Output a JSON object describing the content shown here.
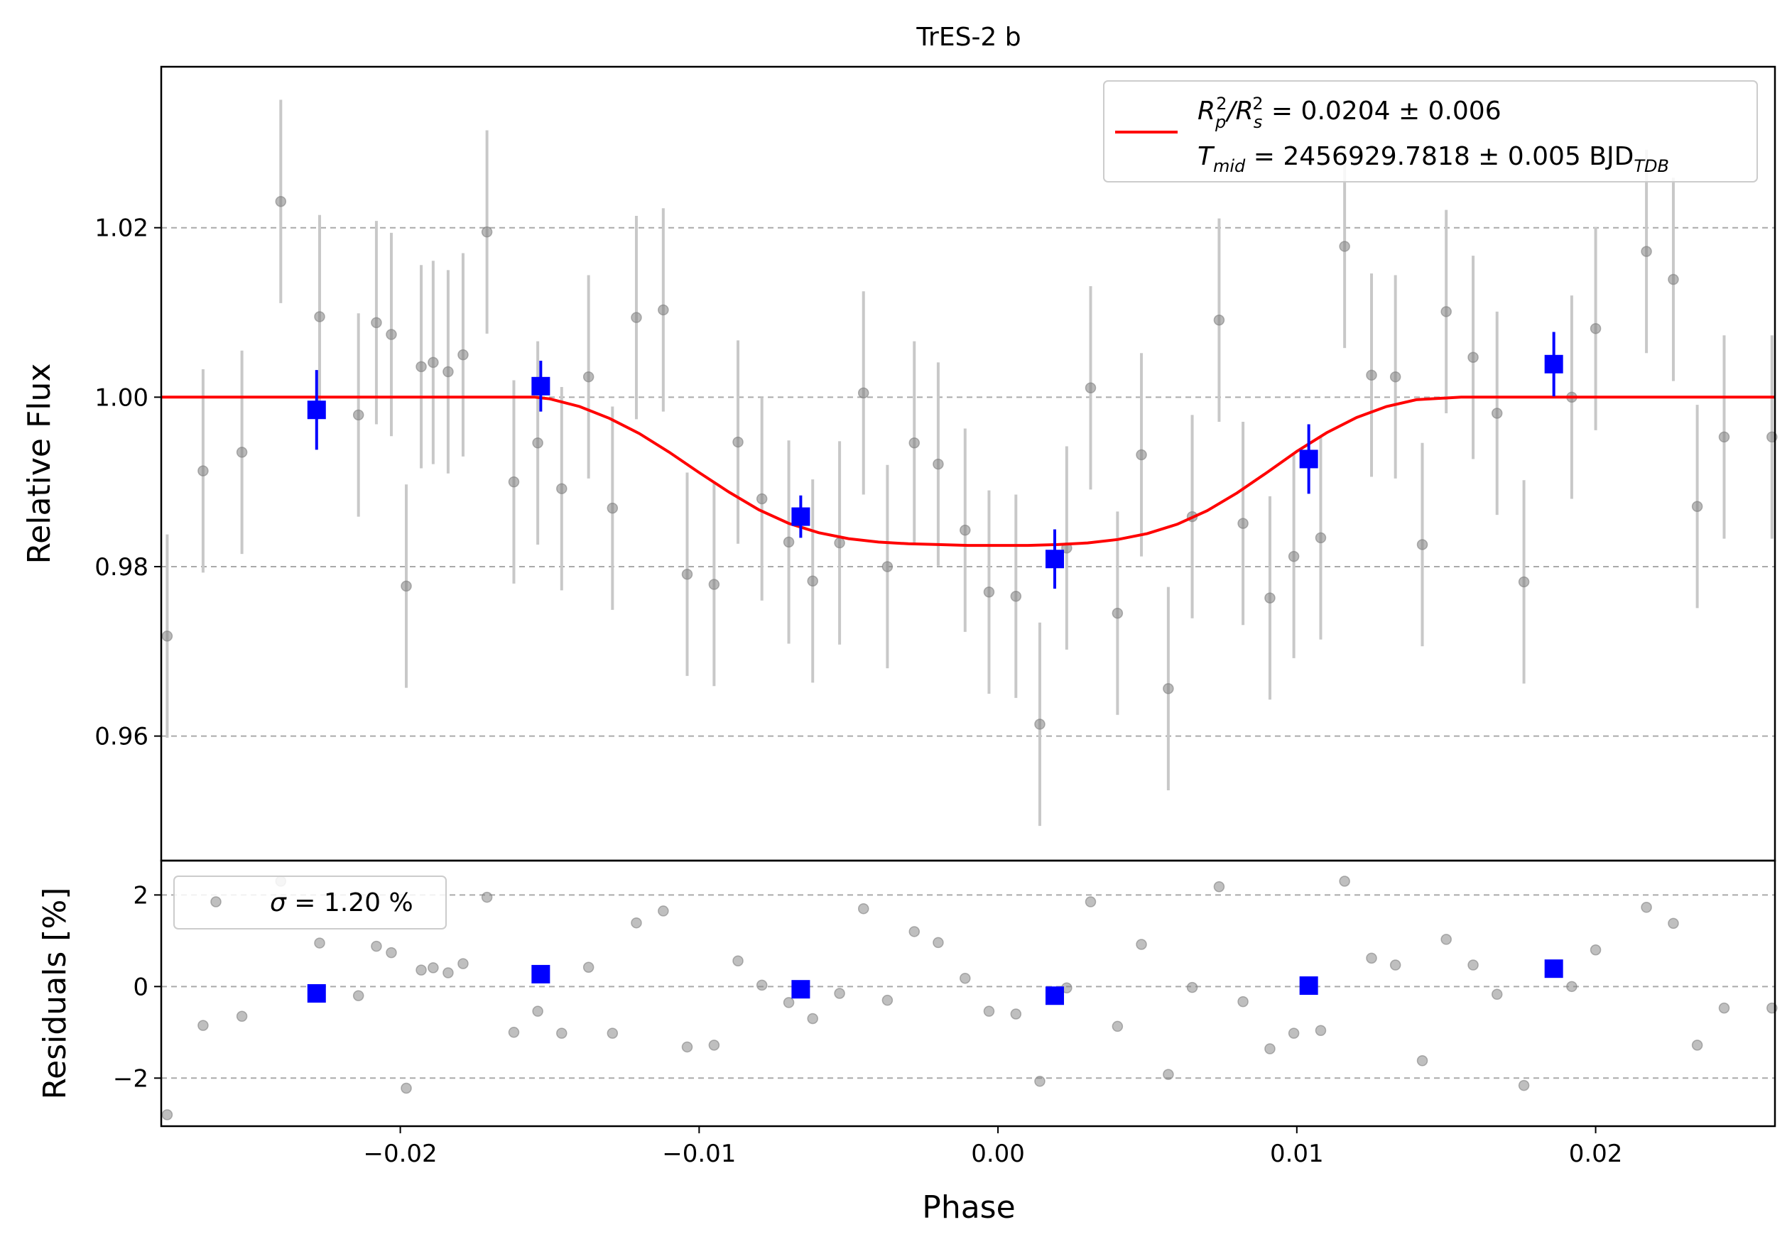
{
  "chart_data": [
    {
      "type": "scatter",
      "panel": "top",
      "title": "TrES-2 b",
      "xlabel": "",
      "ylabel": "Relative Flux",
      "xlim": [
        -0.028,
        0.026
      ],
      "ylim": [
        0.9453,
        1.039
      ],
      "yticks": [
        0.96,
        0.98,
        1.0,
        1.02
      ],
      "ytick_labels": [
        "0.96",
        "0.98",
        "1.00",
        "1.02"
      ],
      "grid": "horizontal-dashed",
      "legend_position": "top-right",
      "legend": {
        "line1": {
          "base": "R",
          "sub1": "p",
          "sup1": "2",
          "mid": "/R",
          "sub2": "s",
          "sup2": "2",
          "tail": " = 0.0204 ± 0.006"
        },
        "line2": {
          "base": "T",
          "sub1": "mid",
          "tail": " = 2456929.7818 ± 0.005 BJD",
          "sub2": "TDB"
        }
      },
      "colors": {
        "model": "#ff0000",
        "binned": "#0000ff",
        "data": "#808080",
        "errorbar": "#c8c8c8"
      },
      "model": {
        "name": "transit model",
        "x": [
          -0.028,
          -0.0155,
          -0.015,
          -0.014,
          -0.013,
          -0.012,
          -0.011,
          -0.01,
          -0.009,
          -0.008,
          -0.007,
          -0.006,
          -0.005,
          -0.004,
          -0.003,
          -0.002,
          -0.001,
          0.0,
          0.001,
          0.002,
          0.003,
          0.004,
          0.005,
          0.006,
          0.007,
          0.008,
          0.009,
          0.01,
          0.011,
          0.012,
          0.013,
          0.014,
          0.015,
          0.0155,
          0.026
        ],
        "y": [
          1.0,
          1.0,
          0.9998,
          0.9989,
          0.9975,
          0.9957,
          0.9935,
          0.9911,
          0.9888,
          0.9867,
          0.9851,
          0.984,
          0.9833,
          0.9829,
          0.9827,
          0.9826,
          0.9825,
          0.9825,
          0.9825,
          0.9826,
          0.9828,
          0.9832,
          0.9839,
          0.985,
          0.9866,
          0.9887,
          0.9911,
          0.9936,
          0.9958,
          0.9976,
          0.9989,
          0.9997,
          0.9999,
          1.0,
          1.0
        ]
      },
      "data_points": [
        {
          "x": -0.0278,
          "y": 0.9718,
          "err": 0.012
        },
        {
          "x": -0.0266,
          "y": 0.9913,
          "err": 0.012
        },
        {
          "x": -0.0253,
          "y": 0.9935,
          "err": 0.012
        },
        {
          "x": -0.024,
          "y": 1.0231,
          "err": 0.012
        },
        {
          "x": -0.0227,
          "y": 1.0095,
          "err": 0.012
        },
        {
          "x": -0.0214,
          "y": 0.9979,
          "err": 0.012
        },
        {
          "x": -0.0208,
          "y": 1.0088,
          "err": 0.012
        },
        {
          "x": -0.0203,
          "y": 1.0074,
          "err": 0.012
        },
        {
          "x": -0.0198,
          "y": 0.9777,
          "err": 0.012
        },
        {
          "x": -0.0193,
          "y": 1.0036,
          "err": 0.012
        },
        {
          "x": -0.0189,
          "y": 1.0041,
          "err": 0.012
        },
        {
          "x": -0.0184,
          "y": 1.003,
          "err": 0.012
        },
        {
          "x": -0.0179,
          "y": 1.005,
          "err": 0.012
        },
        {
          "x": -0.0171,
          "y": 1.0195,
          "err": 0.012
        },
        {
          "x": -0.0162,
          "y": 0.99,
          "err": 0.012
        },
        {
          "x": -0.0154,
          "y": 0.9946,
          "err": 0.012
        },
        {
          "x": -0.0146,
          "y": 0.9892,
          "err": 0.012
        },
        {
          "x": -0.0137,
          "y": 1.0024,
          "err": 0.012
        },
        {
          "x": -0.0129,
          "y": 0.9869,
          "err": 0.012
        },
        {
          "x": -0.0121,
          "y": 1.0094,
          "err": 0.012
        },
        {
          "x": -0.0112,
          "y": 1.0103,
          "err": 0.012
        },
        {
          "x": -0.0104,
          "y": 0.9791,
          "err": 0.012
        },
        {
          "x": -0.0095,
          "y": 0.9779,
          "err": 0.012
        },
        {
          "x": -0.0087,
          "y": 0.9947,
          "err": 0.012
        },
        {
          "x": -0.0079,
          "y": 0.988,
          "err": 0.012
        },
        {
          "x": -0.007,
          "y": 0.9829,
          "err": 0.012
        },
        {
          "x": -0.0062,
          "y": 0.9783,
          "err": 0.012
        },
        {
          "x": -0.0053,
          "y": 0.9828,
          "err": 0.012
        },
        {
          "x": -0.0045,
          "y": 1.0005,
          "err": 0.012
        },
        {
          "x": -0.0037,
          "y": 0.98,
          "err": 0.012
        },
        {
          "x": -0.0028,
          "y": 0.9946,
          "err": 0.012
        },
        {
          "x": -0.002,
          "y": 0.9921,
          "err": 0.012
        },
        {
          "x": -0.0011,
          "y": 0.9843,
          "err": 0.012
        },
        {
          "x": -0.0003,
          "y": 0.977,
          "err": 0.012
        },
        {
          "x": 0.0006,
          "y": 0.9765,
          "err": 0.012
        },
        {
          "x": 0.0014,
          "y": 0.9614,
          "err": 0.012
        },
        {
          "x": 0.0023,
          "y": 0.9822,
          "err": 0.012
        },
        {
          "x": 0.0031,
          "y": 1.0011,
          "err": 0.012
        },
        {
          "x": 0.004,
          "y": 0.9745,
          "err": 0.012
        },
        {
          "x": 0.0048,
          "y": 0.9932,
          "err": 0.012
        },
        {
          "x": 0.0057,
          "y": 0.9656,
          "err": 0.012
        },
        {
          "x": 0.0065,
          "y": 0.9859,
          "err": 0.012
        },
        {
          "x": 0.0074,
          "y": 1.0091,
          "err": 0.012
        },
        {
          "x": 0.0082,
          "y": 0.9851,
          "err": 0.012
        },
        {
          "x": 0.0091,
          "y": 0.9763,
          "err": 0.012
        },
        {
          "x": 0.0099,
          "y": 0.9812,
          "err": 0.012
        },
        {
          "x": 0.0108,
          "y": 0.9834,
          "err": 0.012
        },
        {
          "x": 0.0116,
          "y": 1.0178,
          "err": 0.012
        },
        {
          "x": 0.0125,
          "y": 1.0026,
          "err": 0.012
        },
        {
          "x": 0.0133,
          "y": 1.0024,
          "err": 0.012
        },
        {
          "x": 0.0142,
          "y": 0.9826,
          "err": 0.012
        },
        {
          "x": 0.015,
          "y": 1.0101,
          "err": 0.012
        },
        {
          "x": 0.0159,
          "y": 1.0047,
          "err": 0.012
        },
        {
          "x": 0.0167,
          "y": 0.9981,
          "err": 0.012
        },
        {
          "x": 0.0176,
          "y": 0.9782,
          "err": 0.012
        },
        {
          "x": 0.0192,
          "y": 1.0,
          "err": 0.012
        },
        {
          "x": 0.02,
          "y": 1.0081,
          "err": 0.012
        },
        {
          "x": 0.0217,
          "y": 1.0172,
          "err": 0.012
        },
        {
          "x": 0.0226,
          "y": 1.0139,
          "err": 0.012
        },
        {
          "x": 0.0234,
          "y": 0.9871,
          "err": 0.012
        },
        {
          "x": 0.0243,
          "y": 0.9953,
          "err": 0.012
        },
        {
          "x": 0.0259,
          "y": 0.9953,
          "err": 0.012
        }
      ],
      "binned_points": [
        {
          "x": -0.0228,
          "y": 0.9985,
          "err": 0.0047
        },
        {
          "x": -0.0153,
          "y": 1.0013,
          "err": 0.003
        },
        {
          "x": -0.0066,
          "y": 0.9859,
          "err": 0.0025
        },
        {
          "x": 0.0019,
          "y": 0.9809,
          "err": 0.0035
        },
        {
          "x": 0.0104,
          "y": 0.9927,
          "err": 0.0041
        },
        {
          "x": 0.0186,
          "y": 1.0039,
          "err": 0.0038
        }
      ]
    },
    {
      "type": "scatter",
      "panel": "bottom",
      "xlabel": "Phase",
      "ylabel": "Residuals [%]",
      "xlim": [
        -0.028,
        0.026
      ],
      "ylim": [
        -3.05,
        2.75
      ],
      "xticks": [
        -0.02,
        -0.01,
        0.0,
        0.01,
        0.02
      ],
      "xtick_labels": [
        "−0.02",
        "−0.01",
        "0.00",
        "0.01",
        "0.02"
      ],
      "yticks": [
        -2,
        0,
        2
      ],
      "ytick_labels": [
        "−2",
        "0",
        "2"
      ],
      "grid": "horizontal-dashed",
      "legend_position": "top-left",
      "legend": {
        "symbol": "σ",
        "text": " = 1.20 %"
      },
      "residuals": [
        {
          "x": -0.0278,
          "y": -2.8
        },
        {
          "x": -0.0266,
          "y": -0.85
        },
        {
          "x": -0.0253,
          "y": -0.65
        },
        {
          "x": -0.024,
          "y": 2.3
        },
        {
          "x": -0.0227,
          "y": 0.95
        },
        {
          "x": -0.0214,
          "y": -0.2
        },
        {
          "x": -0.0208,
          "y": 0.88
        },
        {
          "x": -0.0203,
          "y": 0.74
        },
        {
          "x": -0.0198,
          "y": -2.22
        },
        {
          "x": -0.0193,
          "y": 0.36
        },
        {
          "x": -0.0189,
          "y": 0.41
        },
        {
          "x": -0.0184,
          "y": 0.3
        },
        {
          "x": -0.0179,
          "y": 0.5
        },
        {
          "x": -0.0171,
          "y": 1.95
        },
        {
          "x": -0.0162,
          "y": -1.0
        },
        {
          "x": -0.0154,
          "y": -0.54
        },
        {
          "x": -0.0146,
          "y": -1.02
        },
        {
          "x": -0.0137,
          "y": 0.42
        },
        {
          "x": -0.0129,
          "y": -1.02
        },
        {
          "x": -0.0121,
          "y": 1.39
        },
        {
          "x": -0.0112,
          "y": 1.65
        },
        {
          "x": -0.0104,
          "y": -1.32
        },
        {
          "x": -0.0095,
          "y": -1.28
        },
        {
          "x": -0.0087,
          "y": 0.56
        },
        {
          "x": -0.0079,
          "y": 0.03
        },
        {
          "x": -0.007,
          "y": -0.35
        },
        {
          "x": -0.0062,
          "y": -0.7
        },
        {
          "x": -0.0053,
          "y": -0.15
        },
        {
          "x": -0.0045,
          "y": 1.7
        },
        {
          "x": -0.0037,
          "y": -0.3
        },
        {
          "x": -0.0028,
          "y": 1.2
        },
        {
          "x": -0.002,
          "y": 0.96
        },
        {
          "x": -0.0011,
          "y": 0.18
        },
        {
          "x": -0.0003,
          "y": -0.54
        },
        {
          "x": 0.0006,
          "y": -0.6
        },
        {
          "x": 0.0014,
          "y": -2.07
        },
        {
          "x": 0.0023,
          "y": -0.03
        },
        {
          "x": 0.0031,
          "y": 1.85
        },
        {
          "x": 0.004,
          "y": -0.87
        },
        {
          "x": 0.0048,
          "y": 0.92
        },
        {
          "x": 0.0057,
          "y": -1.92
        },
        {
          "x": 0.0065,
          "y": -0.02
        },
        {
          "x": 0.0074,
          "y": 2.18
        },
        {
          "x": 0.0082,
          "y": -0.33
        },
        {
          "x": 0.0091,
          "y": -1.36
        },
        {
          "x": 0.0099,
          "y": -1.02
        },
        {
          "x": 0.0108,
          "y": -0.96
        },
        {
          "x": 0.0116,
          "y": 2.3
        },
        {
          "x": 0.0125,
          "y": 0.62
        },
        {
          "x": 0.0133,
          "y": 0.47
        },
        {
          "x": 0.0142,
          "y": -1.62
        },
        {
          "x": 0.015,
          "y": 1.03
        },
        {
          "x": 0.0159,
          "y": 0.47
        },
        {
          "x": 0.0167,
          "y": -0.17
        },
        {
          "x": 0.0176,
          "y": -2.16
        },
        {
          "x": 0.0192,
          "y": 0.0
        },
        {
          "x": 0.02,
          "y": 0.8
        },
        {
          "x": 0.0217,
          "y": 1.73
        },
        {
          "x": 0.0226,
          "y": 1.38
        },
        {
          "x": 0.0234,
          "y": -1.28
        },
        {
          "x": 0.0243,
          "y": -0.47
        },
        {
          "x": 0.0259,
          "y": -0.47
        }
      ],
      "binned_residuals": [
        {
          "x": -0.0228,
          "y": -0.15
        },
        {
          "x": -0.0153,
          "y": 0.27
        },
        {
          "x": -0.0066,
          "y": -0.06
        },
        {
          "x": 0.0019,
          "y": -0.2
        },
        {
          "x": 0.0104,
          "y": 0.02
        },
        {
          "x": 0.0186,
          "y": 0.39
        }
      ]
    }
  ]
}
